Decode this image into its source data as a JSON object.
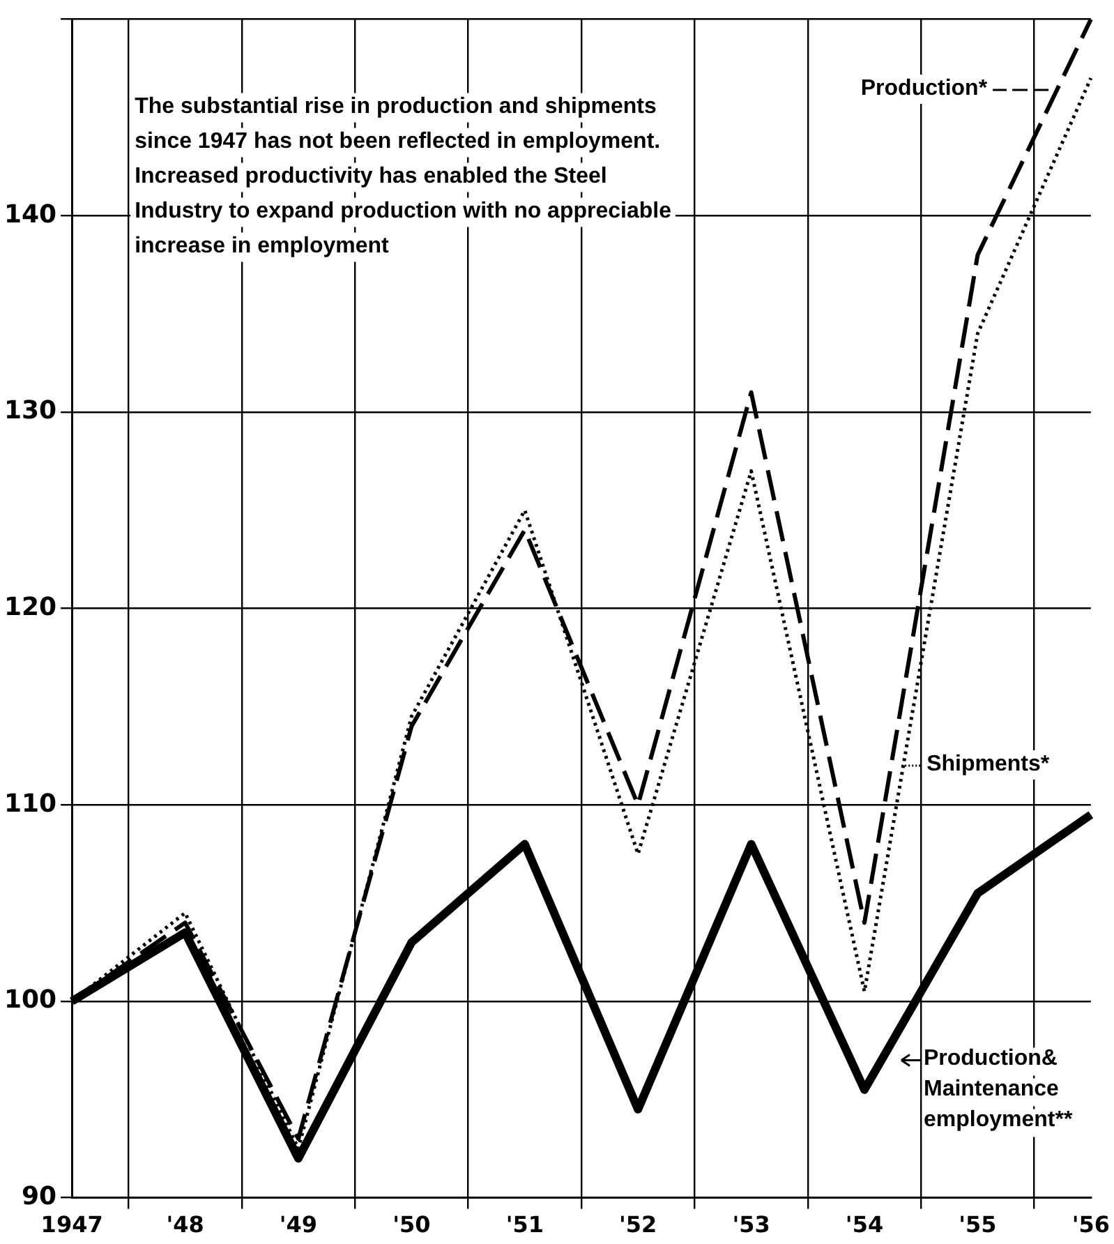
{
  "chart_data": {
    "type": "line",
    "categories": [
      "1947",
      "'48",
      "'49",
      "'50",
      "'51",
      "'52",
      "'53",
      "'54",
      "'55",
      "'56"
    ],
    "series": [
      {
        "name": "Production*",
        "color": "#000000",
        "line_style": "dashed",
        "values": [
          100,
          104,
          93,
          114,
          124,
          110,
          131,
          104,
          138,
          150
        ]
      },
      {
        "name": "Shipments*",
        "color": "#000000",
        "line_style": "dotted",
        "values": [
          100,
          104.5,
          92.5,
          114.5,
          125,
          107.5,
          127,
          100.5,
          134,
          147
        ]
      },
      {
        "name": "Production& Maintenance employment**",
        "color": "#000000",
        "line_style": "solid",
        "values": [
          100,
          103.5,
          92,
          103,
          108,
          94.5,
          108,
          95.5,
          105.5,
          109.5
        ]
      }
    ],
    "ylim": [
      90,
      150
    ],
    "yticks": [
      90,
      100,
      110,
      120,
      130,
      140
    ],
    "grid": true,
    "legend": "right",
    "marker": "none",
    "annotations": [
      "The substantial rise in production and shipments since 1947 has not been reflected in employment. Increased productivity has enabled the Steel Industry to expand production with no appreciable increase in employment"
    ]
  }
}
